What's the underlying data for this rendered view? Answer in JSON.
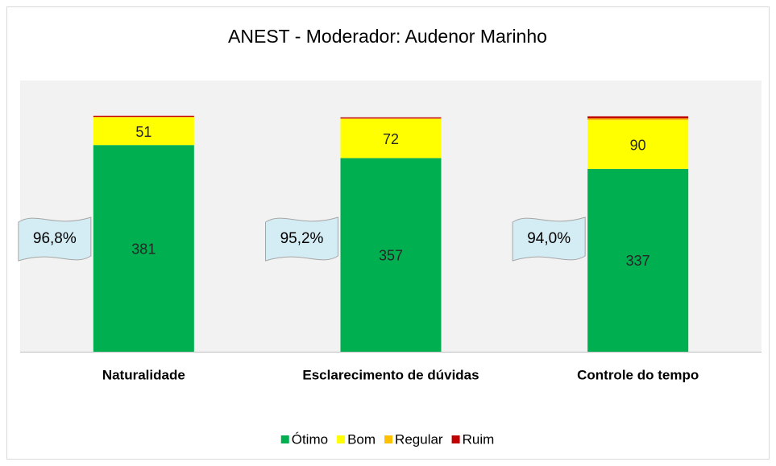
{
  "chart_data": {
    "type": "stacked_bar",
    "title": "ANEST - Moderador: Audenor Marinho",
    "categories": [
      "Naturalidade",
      "Esclarecimento de dúvidas",
      "Controle do tempo"
    ],
    "series": [
      {
        "name": "Ótimo",
        "color": "#00b050",
        "values": [
          381,
          357,
          337
        ],
        "data_labels": true
      },
      {
        "name": "Bom",
        "color": "#ffff00",
        "values": [
          51,
          72,
          90
        ],
        "data_labels": true
      },
      {
        "name": "Regular",
        "color": "#ffc000",
        "values": [
          1,
          1,
          3
        ],
        "data_labels": false
      },
      {
        "name": "Ruim",
        "color": "#c00000",
        "values": [
          2,
          2,
          4
        ],
        "data_labels": false
      }
    ],
    "annotations": [
      "96,8%",
      "95,2%",
      "94,0%"
    ],
    "ylim": [
      0,
      500
    ],
    "legend": "bottom"
  }
}
